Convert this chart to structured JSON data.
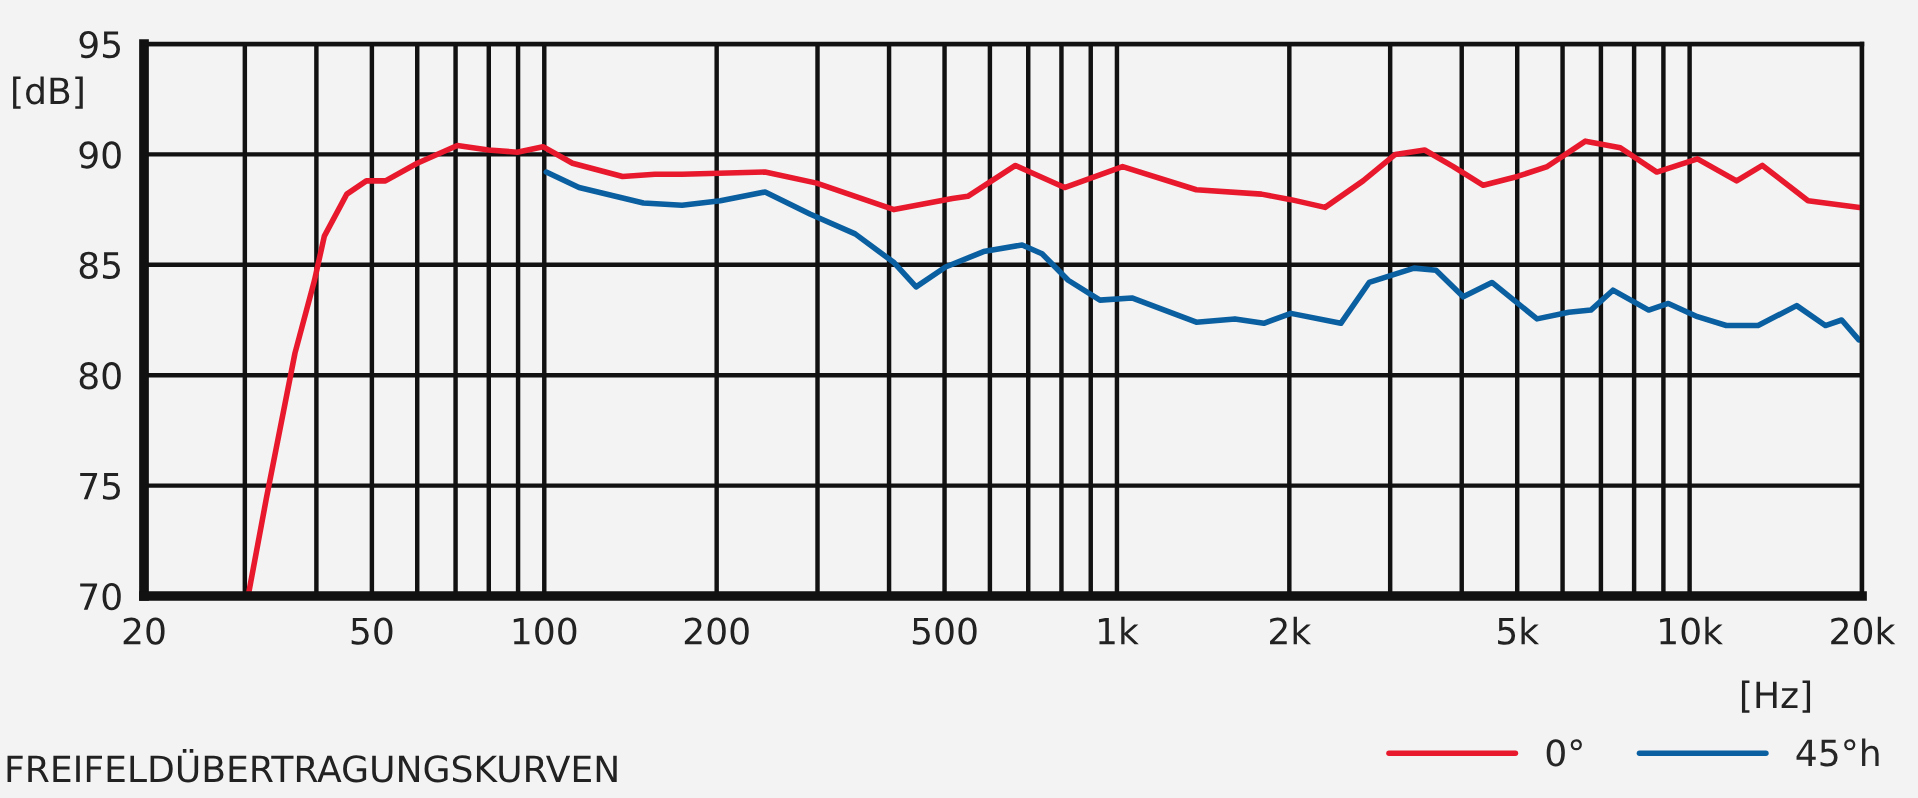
{
  "chart_data": {
    "type": "line",
    "title": "FREIFELDÜBERTRAGUNGSKURVEN",
    "xlabel": "[Hz]",
    "ylabel": "[dB]",
    "log": "x",
    "xlim": [
      20,
      20000
    ],
    "ylim": [
      70,
      95
    ],
    "yticks": [
      70,
      75,
      80,
      85,
      90,
      95
    ],
    "xticks": [
      20,
      {
        "value": 30,
        "label": null
      },
      {
        "value": 40,
        "label": null
      },
      50,
      {
        "value": 60,
        "label": null
      },
      {
        "value": 70,
        "label": null
      },
      {
        "value": 80,
        "label": null
      },
      {
        "value": 90,
        "label": null
      },
      100,
      200,
      {
        "value": 300,
        "label": null
      },
      {
        "value": 400,
        "label": null
      },
      500,
      {
        "value": 600,
        "label": null
      },
      {
        "value": 700,
        "label": null
      },
      {
        "value": 800,
        "label": null
      },
      {
        "value": 900,
        "label": null
      },
      {
        "value": 1000,
        "label": "1k"
      },
      {
        "value": 2000,
        "label": "2k"
      },
      {
        "value": 3000,
        "label": null
      },
      {
        "value": 4000,
        "label": null
      },
      {
        "value": 5000,
        "label": "5k"
      },
      {
        "value": 6000,
        "label": null
      },
      {
        "value": 7000,
        "label": null
      },
      {
        "value": 8000,
        "label": null
      },
      {
        "value": 9000,
        "label": null
      },
      {
        "value": 10000,
        "label": "10k"
      },
      {
        "value": 20000,
        "label": "20k"
      }
    ],
    "grid": true,
    "legend": "bottom right",
    "line_style": "solid",
    "marker": "none",
    "series": [
      {
        "name": "0°",
        "color": "#e8192c",
        "x": [
          30.4,
          32.7,
          36.7,
          39.7,
          41.3,
          45.2,
          48.9,
          52.8,
          60,
          70.5,
          79.9,
          89.7,
          99.5,
          112,
          137,
          156,
          174,
          243,
          299,
          408,
          516,
          549,
          665,
          810,
          1023,
          1376,
          1788,
          2013,
          2309,
          2690,
          3062,
          3446,
          3867,
          4362,
          5004,
          5642,
          6578,
          7569,
          8764,
          10320,
          12080,
          13400,
          16100,
          19800
        ],
        "values": [
          70.0,
          74.4,
          81.0,
          84.3,
          86.3,
          88.2,
          88.8,
          88.8,
          89.6,
          90.4,
          90.2,
          90.1,
          90.35,
          89.6,
          89.0,
          89.1,
          89.1,
          89.2,
          88.7,
          87.5,
          88.0,
          88.1,
          89.5,
          88.5,
          89.45,
          88.4,
          88.2,
          87.95,
          87.6,
          88.8,
          90.0,
          90.2,
          89.45,
          88.6,
          89.0,
          89.45,
          90.6,
          90.3,
          89.2,
          89.8,
          88.8,
          89.5,
          87.9,
          87.6
        ]
      },
      {
        "name": "45°h",
        "color": "#0a5fa0",
        "x": [
          100.8,
          115,
          149,
          174,
          203,
          243,
          291,
          349,
          408,
          446,
          502,
          585,
          683,
          740,
          822,
          934,
          1062,
          1376,
          1607,
          1805,
          2013,
          2460,
          2757,
          3302,
          3607,
          4024,
          4517,
          5414,
          6152,
          6723,
          7347,
          8483,
          9181,
          10320,
          11590,
          13170,
          15380,
          17260,
          18430,
          19750
        ],
        "values": [
          89.2,
          88.5,
          87.8,
          87.7,
          87.9,
          88.3,
          87.3,
          86.4,
          85.1,
          84.0,
          84.9,
          85.6,
          85.9,
          85.5,
          84.3,
          83.4,
          83.5,
          82.4,
          82.55,
          82.35,
          82.8,
          82.35,
          84.2,
          84.85,
          84.75,
          83.55,
          84.2,
          82.55,
          82.85,
          82.95,
          83.85,
          82.95,
          83.25,
          82.65,
          82.25,
          82.25,
          83.15,
          82.25,
          82.5,
          81.6
        ]
      }
    ]
  }
}
